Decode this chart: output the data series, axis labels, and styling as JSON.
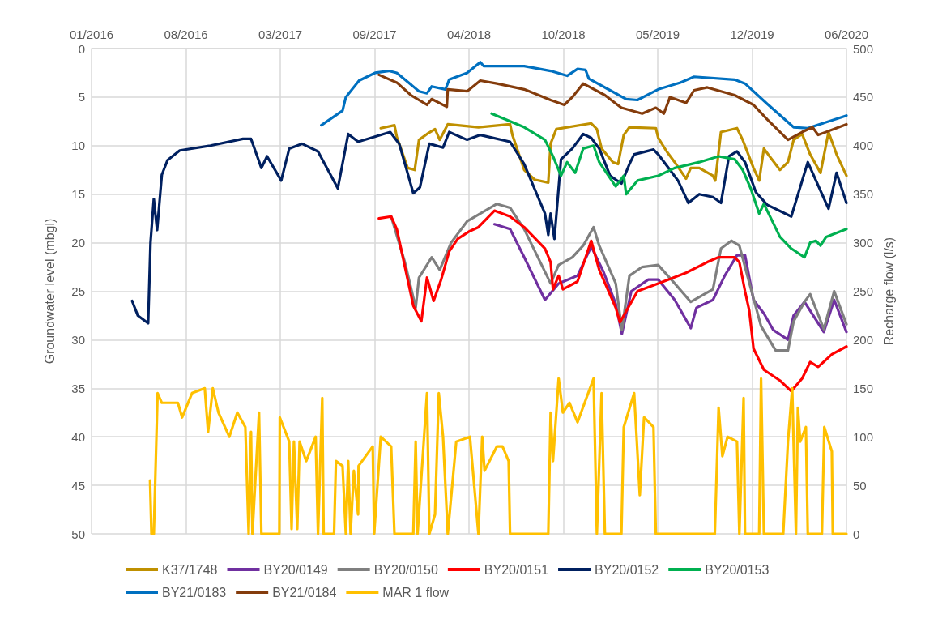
{
  "chart_data": {
    "type": "line",
    "ylabel": "Groundwater level (mbgl)",
    "y2label": "Recharge flow (l/s)",
    "xlim": [
      "2016-01-31",
      "2020-06-18"
    ],
    "xticks": [
      {
        "value": "2016-01-31",
        "label": "01/2016"
      },
      {
        "value": "2016-08-18",
        "label": "08/2016"
      },
      {
        "value": "2017-03-06",
        "label": "03/2017"
      },
      {
        "value": "2017-09-22",
        "label": "09/2017"
      },
      {
        "value": "2018-04-10",
        "label": "04/2018"
      },
      {
        "value": "2018-10-27",
        "label": "10/2018"
      },
      {
        "value": "2019-05-15",
        "label": "05/2019"
      },
      {
        "value": "2019-12-01",
        "label": "12/2019"
      },
      {
        "value": "2020-06-18",
        "label": "06/2020"
      }
    ],
    "ylim": [
      50,
      0
    ],
    "yticks": [
      0,
      5,
      10,
      15,
      20,
      25,
      30,
      35,
      40,
      45,
      50
    ],
    "y2lim": [
      0,
      500
    ],
    "y2ticks": [
      0,
      50,
      100,
      150,
      200,
      250,
      300,
      350,
      400,
      450,
      500
    ],
    "grid": true,
    "legend": "bottom",
    "marker": "none",
    "line_style": "solid",
    "series": [
      {
        "name": "K37/1748",
        "color": "#bf9000",
        "x": [
          "2017-10-05",
          "2017-11-03",
          "2017-11-08",
          "2017-12-01",
          "2017-12-16",
          "2017-12-25",
          "2018-01-11",
          "2018-01-28",
          "2018-02-07",
          "2018-02-24",
          "2018-04-30",
          "2018-07-06",
          "2018-07-11",
          "2018-08-05",
          "2018-08-27",
          "2018-09-25",
          "2018-09-30",
          "2018-10-12",
          "2018-12-25",
          "2019-01-06",
          "2019-01-16",
          "2019-02-09",
          "2019-02-20",
          "2019-03-04",
          "2019-03-16",
          "2019-05-11",
          "2019-05-16",
          "2019-06-03",
          "2019-06-20",
          "2019-07-14",
          "2019-07-24",
          "2019-08-11",
          "2019-09-09",
          "2019-09-14",
          "2019-09-26",
          "2019-10-30",
          "2019-11-11",
          "2019-12-04",
          "2019-12-16",
          "2019-12-26",
          "2020-01-07",
          "2020-01-29",
          "2020-02-15",
          "2020-02-27",
          "2020-03-16",
          "2020-04-02",
          "2020-04-24",
          "2020-05-11",
          "2020-05-28",
          "2020-06-18"
        ],
        "values": [
          8.2,
          7.9,
          9.1,
          12.3,
          12.5,
          9.4,
          8.8,
          8.3,
          9.4,
          7.8,
          8.1,
          7.8,
          8.9,
          12.5,
          13.5,
          13.8,
          9.8,
          8.3,
          7.7,
          8.3,
          10.3,
          11.7,
          11.9,
          8.9,
          8.1,
          8.2,
          9.2,
          10.6,
          11.7,
          13.4,
          12.3,
          12.3,
          13.1,
          13.6,
          8.6,
          8.2,
          9.4,
          12.3,
          13.6,
          10.3,
          11.1,
          12.5,
          11.7,
          9.4,
          8.8,
          10.9,
          12.8,
          8.6,
          10.9,
          13.1
        ]
      },
      {
        "name": "BY20/0149",
        "color": "#7030a0",
        "x": [
          "2018-06-03",
          "2018-07-06",
          "2018-08-05",
          "2018-09-18",
          "2018-10-17",
          "2018-11-26",
          "2018-12-25",
          "2019-01-20",
          "2019-02-15",
          "2019-02-28",
          "2019-03-20",
          "2019-04-25",
          "2019-05-16",
          "2019-06-20",
          "2019-07-24",
          "2019-08-05",
          "2019-09-09",
          "2019-10-04",
          "2019-10-30",
          "2019-11-16",
          "2019-12-04",
          "2019-12-26",
          "2020-01-15",
          "2020-02-15",
          "2020-02-27",
          "2020-03-21",
          "2020-05-01",
          "2020-05-23",
          "2020-06-18"
        ],
        "values": [
          18.1,
          18.6,
          21.5,
          25.9,
          24.2,
          23.4,
          20.4,
          23,
          26.3,
          29.4,
          25,
          23.8,
          23.8,
          25.9,
          28.8,
          26.7,
          25.9,
          23.4,
          21.3,
          21.3,
          25.9,
          27.3,
          29,
          30,
          27.5,
          26.1,
          29.2,
          25.9,
          29.2
        ]
      },
      {
        "name": "BY20/0150",
        "color": "#7f7f7f",
        "x": [
          "2017-10-27",
          "2017-11-25",
          "2017-12-18",
          "2017-12-25",
          "2018-01-21",
          "2018-02-07",
          "2018-03-03",
          "2018-04-06",
          "2018-06-08",
          "2018-07-06",
          "2018-08-05",
          "2018-09-30",
          "2018-10-17",
          "2018-11-15",
          "2018-12-08",
          "2018-12-30",
          "2019-01-11",
          "2019-02-15",
          "2019-02-28",
          "2019-03-16",
          "2019-04-12",
          "2019-05-16",
          "2019-06-20",
          "2019-07-24",
          "2019-09-09",
          "2019-09-26",
          "2019-10-18",
          "2019-11-04",
          "2019-11-21",
          "2019-12-20",
          "2020-01-20",
          "2020-02-15",
          "2020-02-27",
          "2020-03-21",
          "2020-04-02",
          "2020-05-01",
          "2020-05-23",
          "2020-06-18"
        ],
        "values": [
          17.3,
          22,
          26.7,
          23.6,
          21.5,
          22.8,
          20,
          17.8,
          16,
          16.4,
          18.6,
          24.2,
          22.3,
          21.5,
          20.3,
          18.4,
          20.3,
          24.2,
          29,
          23.4,
          22.5,
          22.3,
          24.2,
          26.1,
          24.8,
          20.6,
          19.8,
          20.3,
          23.4,
          28.6,
          31.1,
          31.1,
          28.1,
          26.1,
          25.3,
          28.9,
          25,
          28.4
        ]
      },
      {
        "name": "BY20/0151",
        "color": "#ff0000",
        "x": [
          "2017-10-01",
          "2017-10-27",
          "2017-11-08",
          "2017-12-13",
          "2017-12-30",
          "2018-01-11",
          "2018-01-25",
          "2018-02-10",
          "2018-02-27",
          "2018-03-17",
          "2018-04-12",
          "2018-04-30",
          "2018-06-03",
          "2018-07-06",
          "2018-08-05",
          "2018-09-18",
          "2018-09-30",
          "2018-10-05",
          "2018-10-17",
          "2018-10-26",
          "2018-11-26",
          "2018-12-25",
          "2019-01-11",
          "2019-02-15",
          "2019-02-24",
          "2019-04-02",
          "2019-05-16",
          "2019-07-14",
          "2019-08-28",
          "2019-09-21",
          "2019-10-25",
          "2019-11-04",
          "2019-11-16",
          "2019-11-25",
          "2019-12-04",
          "2019-12-26",
          "2020-01-29",
          "2020-02-22",
          "2020-03-16",
          "2020-04-02",
          "2020-04-19",
          "2020-05-18",
          "2020-06-18"
        ],
        "values": [
          17.5,
          17.3,
          18.6,
          26.5,
          28.1,
          23.6,
          26,
          23.8,
          20.9,
          19.6,
          18.8,
          18.4,
          16.7,
          17.3,
          18.4,
          20.6,
          22,
          24.8,
          23.4,
          24.8,
          24,
          19.8,
          22.8,
          26.7,
          28.2,
          25,
          24.2,
          23.1,
          22,
          21.5,
          21.5,
          22,
          25,
          27,
          30.9,
          33.1,
          34.2,
          35.3,
          34,
          32.3,
          32.8,
          31.5,
          30.7
        ]
      },
      {
        "name": "BY20/0152",
        "color": "#002060",
        "x": [
          "2016-04-26",
          "2016-05-08",
          "2016-05-30",
          "2016-06-04",
          "2016-06-11",
          "2016-06-18",
          "2016-06-28",
          "2016-07-10",
          "2016-08-05",
          "2016-10-09",
          "2016-12-17",
          "2017-01-03",
          "2017-01-25",
          "2017-02-06",
          "2017-03-08",
          "2017-03-25",
          "2017-04-21",
          "2017-05-25",
          "2017-07-06",
          "2017-07-28",
          "2017-08-18",
          "2017-10-25",
          "2017-11-13",
          "2017-12-13",
          "2017-12-27",
          "2018-01-16",
          "2018-02-14",
          "2018-02-27",
          "2018-04-06",
          "2018-05-04",
          "2018-07-06",
          "2018-08-05",
          "2018-09-18",
          "2018-09-25",
          "2018-09-30",
          "2018-10-08",
          "2018-10-22",
          "2018-11-15",
          "2018-12-08",
          "2018-12-25",
          "2019-01-11",
          "2019-02-03",
          "2019-02-27",
          "2019-03-16",
          "2019-03-26",
          "2019-05-06",
          "2019-05-16",
          "2019-06-10",
          "2019-06-27",
          "2019-07-19",
          "2019-08-11",
          "2019-09-09",
          "2019-09-26",
          "2019-10-13",
          "2019-10-30",
          "2019-11-16",
          "2019-12-09",
          "2020-01-02",
          "2020-02-22",
          "2020-03-28",
          "2020-05-11",
          "2020-05-28",
          "2020-06-18"
        ],
        "values": [
          26,
          27.5,
          28.3,
          20,
          15.5,
          18.7,
          13,
          11.5,
          10.5,
          10,
          9.3,
          9.3,
          12.3,
          11.1,
          13.6,
          10.3,
          9.8,
          10.6,
          14.4,
          8.8,
          9.6,
          8.6,
          9.8,
          14.9,
          14.3,
          9.8,
          10.2,
          8.6,
          9.4,
          8.9,
          9.6,
          11.9,
          17,
          19.2,
          17,
          19.6,
          11.4,
          10.3,
          8.8,
          9.2,
          10.3,
          13.1,
          13.9,
          11.9,
          10.9,
          10.4,
          10.9,
          12.5,
          13.6,
          15.9,
          15,
          15.3,
          15.9,
          11.1,
          10.6,
          11.7,
          14.8,
          16.1,
          17.3,
          11.7,
          16.5,
          12.8,
          15.9
        ]
      },
      {
        "name": "BY20/0153",
        "color": "#00b050",
        "x": [
          "2018-05-28",
          "2018-08-05",
          "2018-09-18",
          "2018-10-05",
          "2018-10-22",
          "2018-11-04",
          "2018-11-21",
          "2018-12-08",
          "2018-12-30",
          "2019-01-11",
          "2019-02-15",
          "2019-03-04",
          "2019-03-09",
          "2019-04-02",
          "2019-05-16",
          "2019-06-20",
          "2019-08-11",
          "2019-09-21",
          "2019-10-25",
          "2019-11-11",
          "2019-11-28",
          "2019-12-16",
          "2019-12-26",
          "2020-01-29",
          "2020-02-22",
          "2020-03-21",
          "2020-04-02",
          "2020-04-14",
          "2020-04-24",
          "2020-05-06",
          "2020-06-18"
        ],
        "values": [
          6.7,
          8.1,
          9.4,
          11.1,
          13.1,
          11.7,
          12.8,
          10.3,
          10,
          11.7,
          14.2,
          13.1,
          15,
          13.6,
          13.1,
          12.3,
          11.7,
          11.1,
          11.4,
          12.5,
          14.4,
          17,
          16,
          19.4,
          20.6,
          21.5,
          20,
          19.8,
          20.3,
          19.4,
          18.6
        ]
      },
      {
        "name": "BY21/0183",
        "color": "#0070c0",
        "x": [
          "2017-06-01",
          "2017-07-16",
          "2017-07-23",
          "2017-08-20",
          "2017-09-23",
          "2017-10-22",
          "2017-11-08",
          "2017-12-25",
          "2018-01-11",
          "2018-01-21",
          "2018-02-19",
          "2018-02-27",
          "2018-04-06",
          "2018-05-04",
          "2018-05-11",
          "2018-08-05",
          "2018-09-30",
          "2018-11-04",
          "2018-11-26",
          "2018-12-13",
          "2018-12-20",
          "2019-02-03",
          "2019-03-09",
          "2019-04-02",
          "2019-05-16",
          "2019-07-02",
          "2019-07-31",
          "2019-10-25",
          "2019-11-16",
          "2020-01-02",
          "2020-02-27",
          "2020-03-28",
          "2020-06-18"
        ],
        "values": [
          7.9,
          6.4,
          5,
          3.3,
          2.5,
          2.3,
          2.5,
          4.4,
          4.6,
          3.9,
          4.2,
          3.2,
          2.5,
          1.4,
          1.8,
          1.8,
          2.3,
          2.8,
          2.1,
          2.2,
          3.1,
          4.3,
          5.2,
          5.3,
          4.2,
          3.5,
          2.9,
          3.2,
          3.6,
          5.7,
          8.1,
          8.2,
          6.9
        ]
      },
      {
        "name": "BY21/0184",
        "color": "#843c0c",
        "x": [
          "2017-10-01",
          "2017-11-08",
          "2017-12-08",
          "2018-01-11",
          "2018-01-21",
          "2018-02-22",
          "2018-02-24",
          "2018-04-06",
          "2018-05-04",
          "2018-06-08",
          "2018-08-05",
          "2018-09-30",
          "2018-10-29",
          "2018-11-15",
          "2018-12-08",
          "2019-01-23",
          "2019-02-27",
          "2019-04-12",
          "2019-05-11",
          "2019-05-28",
          "2019-06-10",
          "2019-07-14",
          "2019-07-31",
          "2019-08-28",
          "2019-10-25",
          "2019-12-04",
          "2020-01-02",
          "2020-02-15",
          "2020-03-16",
          "2020-04-07",
          "2020-04-19",
          "2020-06-18"
        ],
        "values": [
          2.7,
          3.5,
          4.8,
          5.8,
          5.2,
          6,
          4.2,
          4.4,
          3.3,
          3.6,
          4.2,
          5.3,
          5.8,
          5,
          3.6,
          4.8,
          6.1,
          6.7,
          6.1,
          6.7,
          5,
          5.6,
          4.3,
          4,
          4.8,
          5.8,
          7.3,
          9.4,
          8.6,
          8.1,
          8.9,
          7.8
        ]
      },
      {
        "name": "MAR 1 flow",
        "color": "#ffc000",
        "axis": "y2",
        "x": [
          "2016-06-03",
          "2016-06-06",
          "2016-06-11",
          "2016-06-19",
          "2016-06-28",
          "2016-08-01",
          "2016-08-10",
          "2016-08-31",
          "2016-09-27",
          "2016-10-04",
          "2016-10-14",
          "2016-10-26",
          "2016-11-18",
          "2016-12-05",
          "2016-12-22",
          "2016-12-29",
          "2017-01-03",
          "2017-01-06",
          "2017-01-20",
          "2017-01-25",
          "2017-03-04",
          "2017-03-05",
          "2017-03-25",
          "2017-03-30",
          "2017-04-04",
          "2017-04-11",
          "2017-04-16",
          "2017-04-30",
          "2017-05-20",
          "2017-05-25",
          "2017-06-03",
          "2017-06-06",
          "2017-06-28",
          "2017-07-02",
          "2017-07-16",
          "2017-07-23",
          "2017-07-28",
          "2017-08-02",
          "2017-08-09",
          "2017-08-18",
          "2017-08-19",
          "2017-09-18",
          "2017-09-21",
          "2017-10-05",
          "2017-10-27",
          "2017-11-03",
          "2017-12-13",
          "2017-12-18",
          "2017-12-22",
          "2018-01-11",
          "2018-01-16",
          "2018-01-28",
          "2018-02-05",
          "2018-02-14",
          "2018-02-24",
          "2018-03-14",
          "2018-04-12",
          "2018-04-30",
          "2018-05-08",
          "2018-05-13",
          "2018-06-08",
          "2018-06-20",
          "2018-07-03",
          "2018-07-06",
          "2018-09-25",
          "2018-09-30",
          "2018-10-05",
          "2018-10-17",
          "2018-10-26",
          "2018-11-09",
          "2018-11-26",
          "2018-12-30",
          "2019-01-06",
          "2019-01-16",
          "2019-01-23",
          "2019-02-27",
          "2019-03-04",
          "2019-03-26",
          "2019-04-07",
          "2019-04-16",
          "2019-05-06",
          "2019-05-11",
          "2019-09-13",
          "2019-09-21",
          "2019-09-29",
          "2019-10-10",
          "2019-10-30",
          "2019-11-04",
          "2019-11-13",
          "2019-11-16",
          "2019-12-16",
          "2019-12-20",
          "2019-12-26",
          "2020-02-05",
          "2020-02-15",
          "2020-02-24",
          "2020-03-03",
          "2020-03-07",
          "2020-03-12",
          "2020-03-24",
          "2020-03-28",
          "2020-04-27",
          "2020-05-02",
          "2020-05-18",
          "2020-05-20",
          "2020-06-18"
        ],
        "values": [
          55,
          0,
          0,
          145,
          135,
          135,
          120,
          145,
          150,
          105,
          150,
          125,
          100,
          125,
          110,
          0,
          105,
          0,
          125,
          0,
          0,
          120,
          95,
          5,
          95,
          5,
          95,
          75,
          100,
          0,
          140,
          0,
          0,
          75,
          70,
          0,
          75,
          0,
          65,
          20,
          70,
          90,
          0,
          100,
          90,
          0,
          0,
          95,
          0,
          145,
          0,
          20,
          145,
          100,
          0,
          95,
          100,
          0,
          100,
          65,
          90,
          90,
          75,
          0,
          0,
          125,
          75,
          160,
          125,
          135,
          115,
          160,
          0,
          145,
          0,
          0,
          110,
          145,
          40,
          120,
          110,
          0,
          0,
          130,
          80,
          100,
          95,
          0,
          140,
          0,
          0,
          160,
          0,
          0,
          95,
          150,
          0,
          130,
          95,
          110,
          0,
          0,
          110,
          85,
          0,
          0
        ]
      }
    ]
  }
}
